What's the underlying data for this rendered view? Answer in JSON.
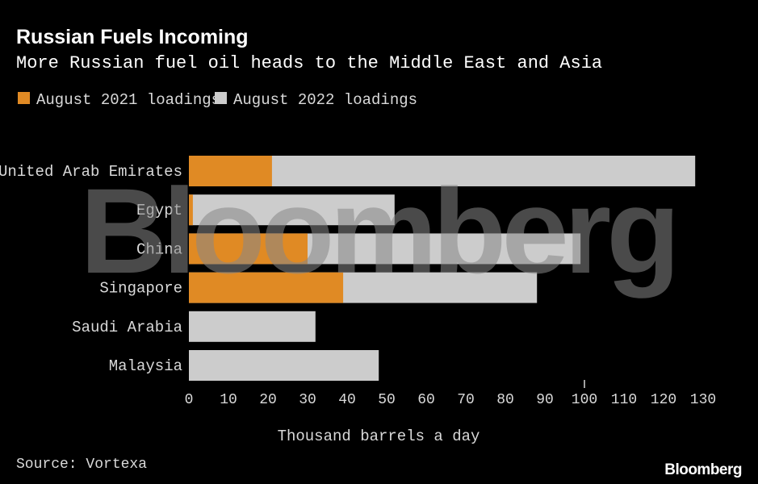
{
  "header": {
    "title": "Russian Fuels Incoming",
    "subtitle": "More Russian fuel oil heads to the Middle East and Asia"
  },
  "footer": {
    "source": "Source: Vortexa",
    "brand": "Bloomberg"
  },
  "watermark": "Bloomberg",
  "colors": {
    "background": "#000000",
    "series_2021": "#e08a24",
    "series_2022": "#cccccc",
    "text": "#d9d9d9"
  },
  "chart_data": {
    "type": "bar",
    "orientation": "horizontal",
    "stacked": "overlay",
    "title": "Russian Fuels Incoming",
    "subtitle": "More Russian fuel oil heads to the Middle East and Asia",
    "xlabel": "Thousand barrels a day",
    "ylabel": "",
    "xlim": [
      0,
      130
    ],
    "xticks": [
      0,
      10,
      20,
      30,
      40,
      50,
      60,
      70,
      80,
      90,
      100,
      110,
      120,
      130
    ],
    "grid": false,
    "legend": "top-left",
    "categories": [
      "United Arab Emirates",
      "Egypt",
      "China",
      "Singapore",
      "Saudi Arabia",
      "Malaysia"
    ],
    "series": [
      {
        "name": "August 2021 loadings",
        "color": "#e08a24",
        "values": [
          21,
          1,
          30,
          39,
          0,
          0
        ]
      },
      {
        "name": "August 2022 loadings",
        "color": "#cccccc",
        "values": [
          128,
          52,
          99,
          88,
          32,
          48
        ]
      }
    ],
    "source": "Source: Vortexa"
  }
}
